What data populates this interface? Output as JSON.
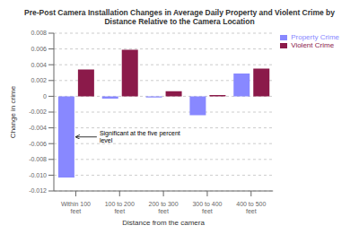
{
  "chart_data": {
    "type": "bar",
    "title": "Pre-Post Camera Installation Changes in Average Daily Property and Violent Crime by\nDistance Relative to the Camera Location",
    "xlabel": "Distance from the camera",
    "ylabel": "Change in crime",
    "categories": [
      "Within 100 feet",
      "100 to 200 feet",
      "200 to 300 feet",
      "300 to 400 feet",
      "400 to 500 feet"
    ],
    "series": [
      {
        "name": "Property Crime",
        "color": "#8888ff",
        "values": [
          -0.0103,
          -0.0003,
          -0.00015,
          -0.0024,
          0.0029
        ]
      },
      {
        "name": "Violent Crime",
        "color": "#8b1a4a",
        "values": [
          0.0034,
          0.0059,
          0.00065,
          0.00015,
          0.0035
        ]
      }
    ],
    "ylim": [
      -0.012,
      0.008
    ],
    "yticks": [
      -0.012,
      {
        "value": -0.01,
        "label": "-0.010"
      },
      -0.008,
      -0.006,
      -0.004,
      -0.002,
      0,
      0.002,
      0.004,
      0.006,
      0.008
    ],
    "grid": true,
    "legend": "right",
    "annotation": "Significant at the five percent\nlevel"
  }
}
